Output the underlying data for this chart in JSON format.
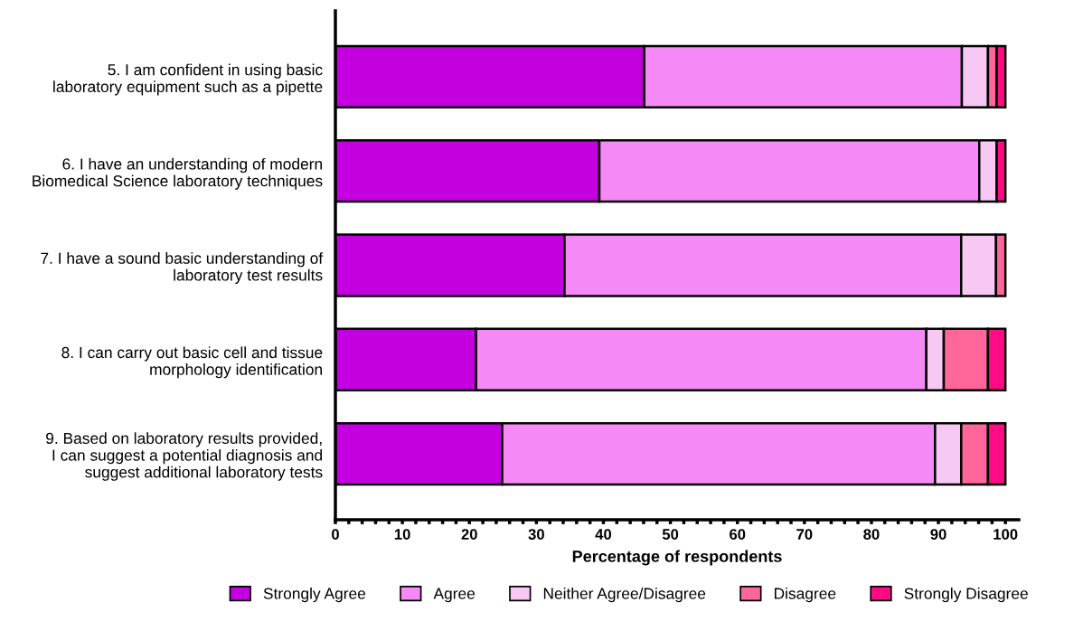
{
  "chart_data": {
    "type": "bar",
    "orientation": "horizontal",
    "stacked": true,
    "categories": [
      "5. I am confident in using basic\nlaboratory equipment such as a pipette",
      "6. I have an understanding of modern\nBiomedical Science laboratory techniques",
      "7. I have a sound basic understanding of\nlaboratory test results",
      "8. I can carry out basic cell and tissue\nmorphology identification",
      "9. Based on laboratory results provided,\nI can suggest a potential diagnosis and\nsuggest additional laboratory tests"
    ],
    "series": [
      {
        "name": "Strongly Agree",
        "color": "#c400e0",
        "values": [
          46.1,
          39.4,
          34.2,
          21.0,
          24.9
        ]
      },
      {
        "name": "Agree",
        "color": "#f589f5",
        "values": [
          47.4,
          56.7,
          59.2,
          67.2,
          64.6
        ]
      },
      {
        "name": "Neither Agree/Disagree",
        "color": "#f8c8f4",
        "values": [
          3.9,
          2.6,
          5.2,
          2.6,
          3.9
        ]
      },
      {
        "name": "Disagree",
        "color": "#ff6699",
        "values": [
          1.3,
          0,
          1.4,
          6.6,
          4.0
        ]
      },
      {
        "name": "Strongly Disagree",
        "color": "#ff0b85",
        "values": [
          1.3,
          1.3,
          0,
          2.6,
          2.6
        ]
      }
    ],
    "xlabel": "Percentage of respondents",
    "xlim": [
      0,
      102
    ],
    "xticks": [
      0,
      {
        "value": 2,
        "label": null
      },
      {
        "value": 4,
        "label": null
      },
      {
        "value": 6,
        "label": null
      },
      {
        "value": 8,
        "label": null
      },
      10,
      {
        "value": 12,
        "label": null
      },
      {
        "value": 14,
        "label": null
      },
      {
        "value": 16,
        "label": null
      },
      {
        "value": 18,
        "label": null
      },
      20,
      {
        "value": 22,
        "label": null
      },
      {
        "value": 24,
        "label": null
      },
      {
        "value": 26,
        "label": null
      },
      {
        "value": 28,
        "label": null
      },
      30,
      {
        "value": 32,
        "label": null
      },
      {
        "value": 34,
        "label": null
      },
      {
        "value": 36,
        "label": null
      },
      {
        "value": 38,
        "label": null
      },
      40,
      {
        "value": 42,
        "label": null
      },
      {
        "value": 44,
        "label": null
      },
      {
        "value": 46,
        "label": null
      },
      {
        "value": 48,
        "label": null
      },
      50,
      {
        "value": 52,
        "label": null
      },
      {
        "value": 54,
        "label": null
      },
      {
        "value": 56,
        "label": null
      },
      {
        "value": 58,
        "label": null
      },
      60,
      {
        "value": 62,
        "label": null
      },
      {
        "value": 64,
        "label": null
      },
      {
        "value": 66,
        "label": null
      },
      {
        "value": 68,
        "label": null
      },
      70,
      {
        "value": 72,
        "label": null
      },
      {
        "value": 74,
        "label": null
      },
      {
        "value": 76,
        "label": null
      },
      {
        "value": 78,
        "label": null
      },
      80,
      {
        "value": 82,
        "label": null
      },
      {
        "value": 84,
        "label": null
      },
      {
        "value": 86,
        "label": null
      },
      {
        "value": 88,
        "label": null
      },
      90,
      {
        "value": 92,
        "label": null
      },
      {
        "value": 94,
        "label": null
      },
      {
        "value": 96,
        "label": null
      },
      {
        "value": 98,
        "label": null
      },
      100
    ],
    "grid": false,
    "legend": "bottom"
  }
}
